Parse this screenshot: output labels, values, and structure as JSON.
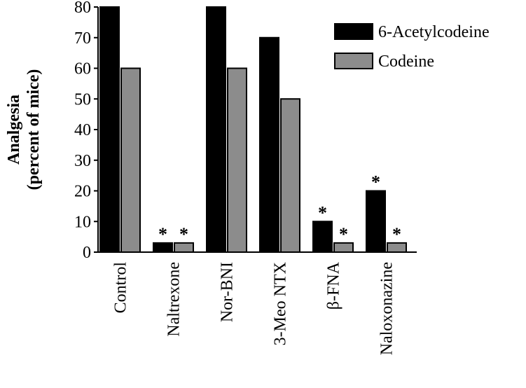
{
  "chart_data": {
    "type": "bar",
    "title": "",
    "xlabel": "",
    "ylabel": [
      "Analgesia",
      "(percent of mice)"
    ],
    "ylim": [
      0,
      80
    ],
    "yticks": [
      0,
      10,
      20,
      30,
      40,
      50,
      60,
      70,
      80
    ],
    "categories": [
      "Control",
      "Naltrexone",
      "Nor-BNI",
      "3-Meo NTX",
      "β-FNA",
      "Naloxonazine"
    ],
    "series": [
      {
        "name": "6-Acetylcodeine",
        "color": "#000000",
        "values": [
          80,
          3,
          80,
          70,
          10,
          20
        ],
        "significant": [
          false,
          true,
          false,
          false,
          true,
          true
        ]
      },
      {
        "name": "Codeine",
        "color": "#8c8c8c",
        "values": [
          60,
          3,
          60,
          50,
          3,
          3
        ],
        "significant": [
          false,
          true,
          false,
          false,
          true,
          true
        ]
      }
    ],
    "significance_marker": "*",
    "legend_position": "top-right",
    "grid": false
  }
}
